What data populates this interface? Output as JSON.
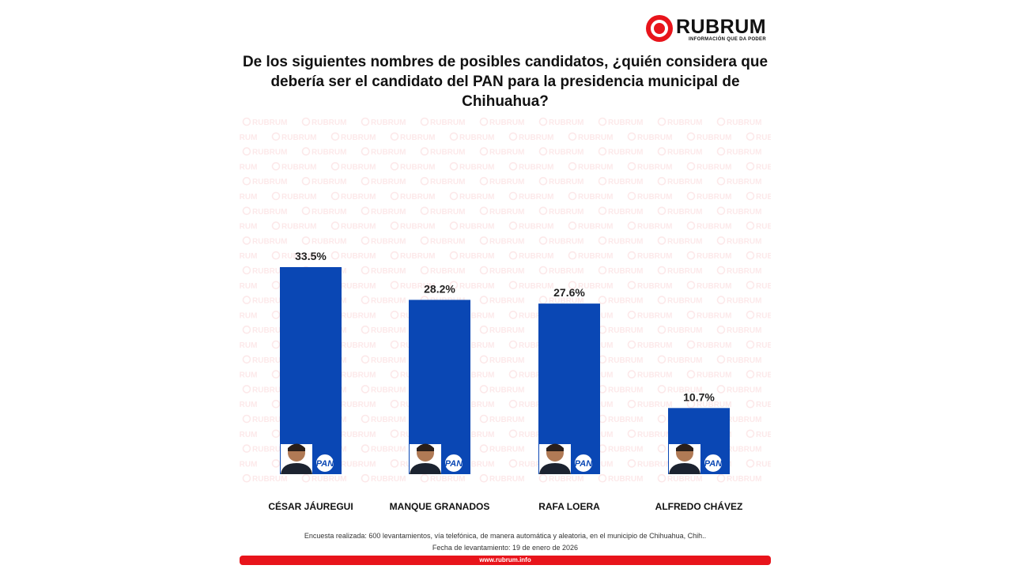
{
  "brand": {
    "name": "RUBRUM",
    "tagline": "INFORMACIÓN QUE DA PODER",
    "watermark": "RUBRUM",
    "accent_color": "#e8141b",
    "url": "www.rubrum.info"
  },
  "candidates": [
    {
      "name": "CÉSAR JÁUREGUI",
      "party": "PAN"
    },
    {
      "name": "MANQUE GRANADOS",
      "party": "PAN"
    },
    {
      "name": "RAFA LOERA",
      "party": "PAN"
    },
    {
      "name": "ALFREDO CHÁVEZ",
      "party": "PAN"
    }
  ],
  "chart_data": {
    "type": "bar",
    "title": "De los siguientes nombres de posibles candidatos, ¿quién considera que debería ser el candidato del PAN para la presidencia municipal de Chihuahua?",
    "categories": [
      "CÉSAR JÁUREGUI",
      "MANQUE GRANADOS",
      "RAFA LOERA",
      "ALFREDO CHÁVEZ"
    ],
    "values": [
      33.5,
      28.2,
      27.6,
      10.7
    ],
    "value_labels": [
      "33.5%",
      "28.2%",
      "27.6%",
      "10.7%"
    ],
    "bar_color": "#0a47b4",
    "ylim": [
      0,
      35
    ],
    "grid": false,
    "legend": "none"
  },
  "footer": {
    "methodology": "Encuesta realizada: 600 levantamientos, vía telefónica, de manera automática y aleatoria, en el municipio de Chihuahua, Chih..",
    "date": "Fecha de levantamiento: 19 de enero de 2026"
  }
}
